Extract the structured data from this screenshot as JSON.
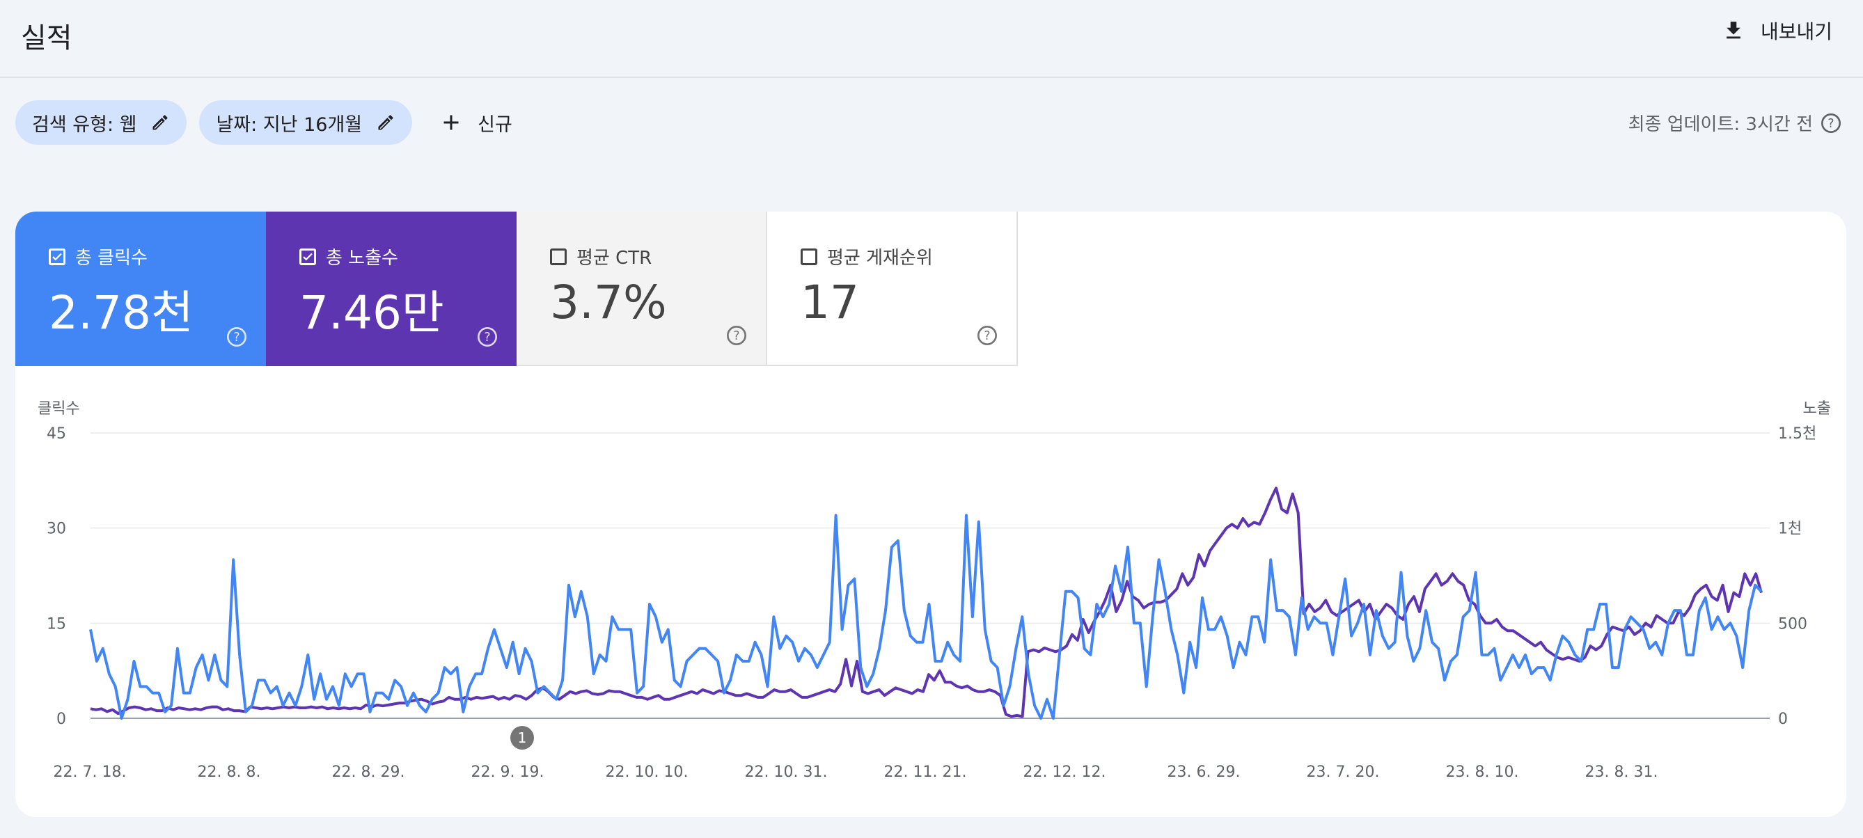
{
  "header": {
    "title": "실적",
    "export_label": "내보내기"
  },
  "filters": {
    "search_type": "검색 유형: 웹",
    "date": "날짜: 지난 16개월",
    "new_label": "신규",
    "last_updated": "최종 업데이트: 3시간 전"
  },
  "metrics": [
    {
      "label": "총 클릭수",
      "value": "2.78천",
      "checked": true
    },
    {
      "label": "총 노출수",
      "value": "7.46만",
      "checked": true
    },
    {
      "label": "평균 CTR",
      "value": "3.7%",
      "checked": false
    },
    {
      "label": "평균 게재순위",
      "value": "17",
      "checked": false
    }
  ],
  "colors": {
    "clicks": "#4285f4",
    "impressions": "#5e35b1",
    "accent_chip": "#d3e3fd"
  },
  "icons": {
    "export": "download-icon",
    "edit": "pencil-icon",
    "add": "plus-icon",
    "help": "help-circle-icon",
    "checkbox": "checkbox-icon"
  },
  "chart_data": {
    "type": "line",
    "ylabel_left": "클릭수",
    "ylabel_right": "노출",
    "left_ticks": [
      "0",
      "15",
      "30",
      "45"
    ],
    "right_ticks": [
      "0",
      "500",
      "1천",
      "1.5천"
    ],
    "left_range": [
      0,
      45
    ],
    "right_range": [
      0,
      1500
    ],
    "x_tick_labels": [
      "22. 7. 18.",
      "22. 8. 8.",
      "22. 8. 29.",
      "22. 9. 19.",
      "22. 10. 10.",
      "22. 10. 31.",
      "22. 11. 21.",
      "22. 12. 12.",
      "23. 6. 29.",
      "23. 7. 20.",
      "23. 8. 10.",
      "23. 8. 31."
    ],
    "annotation": "1",
    "grid": true,
    "series": [
      {
        "name": "총 클릭수",
        "axis": "left",
        "values": [
          14,
          9,
          11,
          7,
          5,
          0,
          3,
          9,
          5,
          5,
          4,
          4,
          1,
          2,
          11,
          4,
          4,
          8,
          10,
          6,
          10,
          6,
          5,
          25,
          10,
          1,
          2,
          6,
          6,
          4,
          5,
          2,
          4,
          2,
          5,
          10,
          3,
          7,
          3,
          5,
          2,
          7,
          5,
          7,
          7,
          1,
          4,
          4,
          3,
          6,
          5,
          2,
          4,
          2,
          1,
          3,
          4,
          8,
          7,
          8,
          1,
          5,
          7,
          7,
          11,
          14,
          11,
          8,
          12,
          7,
          11,
          9,
          4,
          5,
          4,
          3,
          6,
          21,
          16,
          20,
          16,
          7,
          10,
          9,
          16,
          14,
          14,
          14,
          4,
          5,
          18,
          16,
          12,
          14,
          6,
          5,
          9,
          10,
          11,
          11,
          10,
          9,
          4,
          6,
          10,
          9,
          9,
          12,
          10,
          5,
          16,
          11,
          13,
          12,
          9,
          11,
          10,
          8,
          10,
          12,
          32,
          14,
          21,
          22,
          8,
          5,
          7,
          11,
          17,
          27,
          28,
          17,
          13,
          12,
          12,
          18,
          9,
          9,
          12,
          10,
          9,
          32,
          16,
          31,
          14,
          9,
          8,
          2,
          5,
          11,
          16,
          7,
          2,
          0,
          3,
          0,
          10,
          20,
          20,
          19,
          11,
          10,
          18,
          16,
          18,
          24,
          20,
          27,
          15,
          15,
          5,
          16,
          25,
          20,
          14,
          10,
          4,
          12,
          8,
          19,
          14,
          14,
          16,
          13,
          8,
          12,
          10,
          16,
          16,
          12,
          25,
          17,
          17,
          16,
          10,
          19,
          14,
          16,
          15,
          15,
          10,
          16,
          22,
          13,
          15,
          18,
          10,
          17,
          13,
          11,
          12,
          23,
          13,
          9,
          11,
          17,
          12,
          11,
          6,
          9,
          10,
          16,
          17,
          23,
          10,
          10,
          11,
          6,
          8,
          10,
          8,
          10,
          7,
          8,
          8,
          6,
          10,
          13,
          12,
          10,
          9,
          14,
          14,
          18,
          18,
          8,
          8,
          14,
          16,
          15,
          14,
          11,
          12,
          10,
          15,
          17,
          17,
          10,
          10,
          17,
          19,
          14,
          16,
          14,
          15,
          13,
          8,
          17,
          21,
          20
        ],
        "note": ""
      },
      {
        "name": "총 노출수",
        "axis": "right",
        "values": [
          50,
          45,
          50,
          35,
          45,
          25,
          40,
          55,
          60,
          55,
          45,
          50,
          40,
          40,
          55,
          45,
          55,
          50,
          45,
          50,
          45,
          55,
          60,
          60,
          45,
          50,
          40,
          40,
          35,
          60,
          55,
          50,
          55,
          50,
          55,
          60,
          55,
          60,
          55,
          55,
          60,
          55,
          60,
          50,
          55,
          50,
          55,
          50,
          55,
          50,
          70,
          60,
          70,
          65,
          70,
          75,
          80,
          80,
          90,
          95,
          100,
          90,
          75,
          85,
          90,
          110,
          100,
          100,
          110,
          100,
          110,
          105,
          110,
          115,
          100,
          110,
          100,
          120,
          115,
          100,
          120,
          150,
          160,
          140,
          110,
          100,
          120,
          140,
          130,
          140,
          145,
          130,
          125,
          130,
          145,
          140,
          140,
          130,
          120,
          110,
          110,
          100,
          110,
          120,
          100,
          100,
          110,
          120,
          130,
          140,
          130,
          150,
          140,
          130,
          145,
          140,
          130,
          120,
          120,
          130,
          120,
          110,
          110,
          130,
          150,
          140,
          140,
          150,
          130,
          110,
          110,
          120,
          130,
          140,
          150,
          140,
          180,
          310,
          170,
          300,
          140,
          130,
          140,
          150,
          120,
          140,
          160,
          150,
          140,
          130,
          150,
          140,
          230,
          200,
          250,
          190,
          190,
          170,
          160,
          170,
          150,
          140,
          140,
          150,
          140,
          120,
          20,
          10,
          15,
          10,
          350,
          360,
          350,
          370,
          360,
          350,
          360,
          380,
          440,
          410,
          520,
          450,
          510,
          560,
          620,
          700,
          560,
          620,
          720,
          640,
          620,
          580,
          600,
          610,
          610,
          620,
          650,
          680,
          760,
          700,
          740,
          860,
          800,
          880,
          920,
          960,
          1000,
          1020,
          1000,
          1050,
          1010,
          1030,
          1020,
          1080,
          1150,
          1210,
          1100,
          1080,
          1180,
          1080,
          550,
          600,
          560,
          580,
          620,
          560,
          540,
          560,
          580,
          600,
          620,
          560,
          600,
          520,
          560,
          600,
          580,
          540,
          520,
          600,
          640,
          560,
          680,
          720,
          760,
          700,
          720,
          760,
          720,
          700,
          620,
          600,
          540,
          500,
          500,
          520,
          480,
          460,
          460,
          440,
          420,
          400,
          380,
          400,
          360,
          340,
          320,
          310,
          320,
          310,
          300,
          320,
          380,
          360,
          380,
          440,
          480,
          470,
          460,
          480,
          440,
          460,
          500,
          480,
          540,
          520,
          500,
          500,
          560,
          540,
          580,
          650,
          680,
          700,
          640,
          620,
          700,
          560,
          660,
          640,
          760,
          700,
          760,
          660
        ]
      }
    ]
  }
}
